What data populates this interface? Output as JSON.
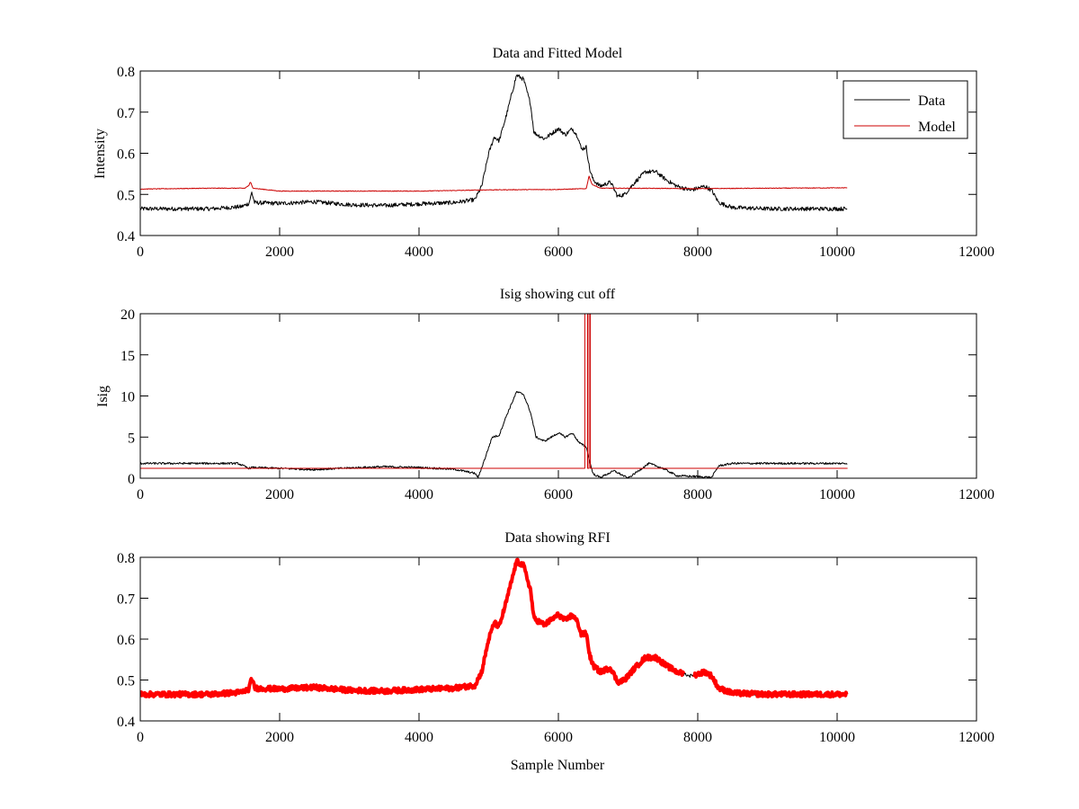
{
  "chart_data": [
    {
      "type": "line",
      "title": "Data and Fitted Model",
      "xlabel": "",
      "ylabel": "Intensity",
      "xlim": [
        0,
        12000
      ],
      "ylim": [
        0.4,
        0.8
      ],
      "xticks": [
        0,
        2000,
        4000,
        6000,
        8000,
        10000,
        12000
      ],
      "yticks": [
        0.4,
        0.5,
        0.6,
        0.7,
        0.8
      ],
      "xtick_labels": [
        "0",
        "2000",
        "4000",
        "6000",
        "8000",
        "10000",
        "12000"
      ],
      "ytick_labels": [
        "0.4",
        "0.5",
        "0.6",
        "0.7",
        "0.8"
      ],
      "grid": false,
      "legend": {
        "position": "top-right"
      },
      "series": [
        {
          "name": "Data",
          "color": "#000000",
          "noise": 0.005,
          "points": [
            [
              0,
              0.465
            ],
            [
              1000,
              0.465
            ],
            [
              1450,
              0.47
            ],
            [
              1560,
              0.478
            ],
            [
              1600,
              0.505
            ],
            [
              1640,
              0.48
            ],
            [
              2000,
              0.478
            ],
            [
              2500,
              0.482
            ],
            [
              3000,
              0.475
            ],
            [
              3500,
              0.473
            ],
            [
              4000,
              0.477
            ],
            [
              4500,
              0.48
            ],
            [
              4800,
              0.487
            ],
            [
              4900,
              0.52
            ],
            [
              5000,
              0.6
            ],
            [
              5080,
              0.64
            ],
            [
              5150,
              0.63
            ],
            [
              5250,
              0.69
            ],
            [
              5400,
              0.79
            ],
            [
              5500,
              0.78
            ],
            [
              5600,
              0.72
            ],
            [
              5650,
              0.65
            ],
            [
              5800,
              0.635
            ],
            [
              6000,
              0.66
            ],
            [
              6100,
              0.645
            ],
            [
              6200,
              0.66
            ],
            [
              6280,
              0.64
            ],
            [
              6330,
              0.61
            ],
            [
              6400,
              0.615
            ],
            [
              6450,
              0.56
            ],
            [
              6500,
              0.535
            ],
            [
              6600,
              0.52
            ],
            [
              6750,
              0.53
            ],
            [
              6850,
              0.495
            ],
            [
              6950,
              0.5
            ],
            [
              7100,
              0.53
            ],
            [
              7250,
              0.555
            ],
            [
              7400,
              0.555
            ],
            [
              7550,
              0.535
            ],
            [
              7700,
              0.52
            ],
            [
              7900,
              0.51
            ],
            [
              8100,
              0.52
            ],
            [
              8200,
              0.51
            ],
            [
              8300,
              0.48
            ],
            [
              8500,
              0.468
            ],
            [
              9000,
              0.465
            ],
            [
              10150,
              0.465
            ]
          ]
        },
        {
          "name": "Model",
          "color": "#cc0000",
          "noise": 0.0008,
          "points": [
            [
              0,
              0.513
            ],
            [
              1000,
              0.515
            ],
            [
              1500,
              0.515
            ],
            [
              1560,
              0.522
            ],
            [
              1580,
              0.53
            ],
            [
              1620,
              0.515
            ],
            [
              2000,
              0.508
            ],
            [
              3000,
              0.508
            ],
            [
              4000,
              0.508
            ],
            [
              4700,
              0.51
            ],
            [
              5000,
              0.511
            ],
            [
              6000,
              0.512
            ],
            [
              6400,
              0.514
            ],
            [
              6440,
              0.545
            ],
            [
              6480,
              0.525
            ],
            [
              6600,
              0.515
            ],
            [
              7000,
              0.515
            ],
            [
              8000,
              0.514
            ],
            [
              9000,
              0.515
            ],
            [
              10150,
              0.516
            ]
          ]
        }
      ]
    },
    {
      "type": "line",
      "title": "Isig showing cut off",
      "xlabel": "",
      "ylabel": "Isig",
      "xlim": [
        0,
        12000
      ],
      "ylim": [
        0,
        20
      ],
      "xticks": [
        0,
        2000,
        4000,
        6000,
        8000,
        10000,
        12000
      ],
      "yticks": [
        0,
        5,
        10,
        15,
        20
      ],
      "xtick_labels": [
        "0",
        "2000",
        "4000",
        "6000",
        "8000",
        "10000",
        "12000"
      ],
      "ytick_labels": [
        "0",
        "5",
        "10",
        "15",
        "20"
      ],
      "grid": false,
      "series": [
        {
          "color": "#000000",
          "noise": 0.12,
          "points": [
            [
              0,
              1.8
            ],
            [
              1400,
              1.8
            ],
            [
              1560,
              1.2
            ],
            [
              1600,
              1.3
            ],
            [
              2000,
              1.2
            ],
            [
              2500,
              1.05
            ],
            [
              3000,
              1.25
            ],
            [
              3500,
              1.4
            ],
            [
              4000,
              1.3
            ],
            [
              4500,
              1.1
            ],
            [
              4800,
              0.6
            ],
            [
              4850,
              0.1
            ],
            [
              4950,
              2.5
            ],
            [
              5050,
              5.0
            ],
            [
              5150,
              5.2
            ],
            [
              5250,
              7.5
            ],
            [
              5400,
              10.5
            ],
            [
              5500,
              10.2
            ],
            [
              5600,
              8.0
            ],
            [
              5680,
              5.0
            ],
            [
              5800,
              4.5
            ],
            [
              6000,
              5.5
            ],
            [
              6100,
              5.0
            ],
            [
              6200,
              5.5
            ],
            [
              6300,
              4.3
            ],
            [
              6400,
              3.8
            ],
            [
              6450,
              2.0
            ],
            [
              6500,
              0.5
            ],
            [
              6600,
              0.1
            ],
            [
              6800,
              0.9
            ],
            [
              7000,
              0.0
            ],
            [
              7100,
              0.6
            ],
            [
              7300,
              1.8
            ],
            [
              7500,
              1.2
            ],
            [
              7700,
              0.3
            ],
            [
              8000,
              0.2
            ],
            [
              8200,
              0.1
            ],
            [
              8300,
              1.5
            ],
            [
              8500,
              1.8
            ],
            [
              9000,
              1.8
            ],
            [
              10150,
              1.8
            ]
          ]
        },
        {
          "color": "#cc0000",
          "noise": 0,
          "points": [
            [
              0,
              1.2
            ],
            [
              6380,
              1.2
            ],
            [
              6380,
              20
            ],
            [
              6420,
              20
            ],
            [
              6420,
              1.2
            ],
            [
              6440,
              1.2
            ],
            [
              6440,
              20
            ],
            [
              6460,
              20
            ],
            [
              6460,
              1.2
            ],
            [
              10150,
              1.2
            ]
          ]
        }
      ]
    },
    {
      "type": "line",
      "title": "Data showing RFI",
      "xlabel": "Sample Number",
      "ylabel": "",
      "xlim": [
        0,
        12000
      ],
      "ylim": [
        0.4,
        0.8
      ],
      "xticks": [
        0,
        2000,
        4000,
        6000,
        8000,
        10000,
        12000
      ],
      "yticks": [
        0.4,
        0.5,
        0.6,
        0.7,
        0.8
      ],
      "xtick_labels": [
        "0",
        "2000",
        "4000",
        "6000",
        "8000",
        "10000",
        "12000"
      ],
      "ytick_labels": [
        "0.4",
        "0.5",
        "0.6",
        "0.7",
        "0.8"
      ],
      "grid": false,
      "series": [
        {
          "color": "#000000",
          "noise": 0.004,
          "points": [
            [
              0,
              0.465
            ],
            [
              1000,
              0.465
            ],
            [
              1450,
              0.47
            ],
            [
              1560,
              0.478
            ],
            [
              1600,
              0.505
            ],
            [
              1640,
              0.48
            ],
            [
              2000,
              0.478
            ],
            [
              2500,
              0.482
            ],
            [
              3000,
              0.475
            ],
            [
              3500,
              0.473
            ],
            [
              4000,
              0.477
            ],
            [
              4500,
              0.48
            ],
            [
              4800,
              0.487
            ],
            [
              4900,
              0.52
            ],
            [
              5000,
              0.6
            ],
            [
              5080,
              0.64
            ],
            [
              5150,
              0.63
            ],
            [
              5250,
              0.69
            ],
            [
              5400,
              0.79
            ],
            [
              5500,
              0.78
            ],
            [
              5600,
              0.72
            ],
            [
              5650,
              0.65
            ],
            [
              5800,
              0.635
            ],
            [
              6000,
              0.66
            ],
            [
              6100,
              0.645
            ],
            [
              6200,
              0.66
            ],
            [
              6280,
              0.64
            ],
            [
              6330,
              0.61
            ],
            [
              6400,
              0.615
            ],
            [
              6450,
              0.56
            ],
            [
              6500,
              0.535
            ],
            [
              6600,
              0.52
            ],
            [
              6750,
              0.53
            ],
            [
              6850,
              0.495
            ],
            [
              6950,
              0.5
            ],
            [
              7100,
              0.53
            ],
            [
              7250,
              0.555
            ],
            [
              7400,
              0.555
            ],
            [
              7550,
              0.535
            ],
            [
              7700,
              0.52
            ],
            [
              7900,
              0.51
            ],
            [
              8100,
              0.52
            ],
            [
              8200,
              0.51
            ],
            [
              8300,
              0.48
            ],
            [
              8500,
              0.468
            ],
            [
              9000,
              0.465
            ],
            [
              10150,
              0.465
            ]
          ]
        },
        {
          "color": "#ff0000",
          "noise": 0.006,
          "thick": true,
          "points": [
            [
              0,
              0.465
            ],
            [
              1000,
              0.465
            ],
            [
              1450,
              0.47
            ],
            [
              1560,
              0.478
            ],
            [
              1600,
              0.505
            ],
            [
              1640,
              0.48
            ],
            [
              2000,
              0.478
            ],
            [
              2500,
              0.482
            ],
            [
              3000,
              0.475
            ],
            [
              3500,
              0.473
            ],
            [
              4000,
              0.477
            ],
            [
              4500,
              0.48
            ],
            [
              4800,
              0.487
            ],
            [
              4900,
              0.52
            ],
            [
              5000,
              0.6
            ],
            [
              5080,
              0.64
            ],
            [
              5150,
              0.63
            ],
            [
              5250,
              0.69
            ],
            [
              5400,
              0.79
            ],
            [
              5500,
              0.78
            ],
            [
              5600,
              0.72
            ],
            [
              5650,
              0.65
            ],
            [
              5800,
              0.635
            ],
            [
              6000,
              0.66
            ],
            [
              6100,
              0.645
            ],
            [
              6200,
              0.66
            ],
            [
              6280,
              0.64
            ],
            [
              6330,
              0.61
            ],
            [
              6400,
              0.615
            ],
            [
              6450,
              0.56
            ],
            [
              6500,
              0.535
            ],
            [
              6600,
              0.52
            ],
            [
              6750,
              0.53
            ],
            [
              6850,
              0.495
            ],
            [
              6950,
              0.5
            ],
            [
              7100,
              0.53
            ],
            [
              7250,
              0.555
            ],
            [
              7400,
              0.555
            ],
            [
              7550,
              0.535
            ],
            [
              7700,
              0.52
            ],
            [
              7800,
              0.515
            ],
            [
              7850,
              0.515
            ],
            [
              7950,
              0.512
            ],
            [
              8100,
              0.52
            ],
            [
              8200,
              0.51
            ],
            [
              8300,
              0.48
            ],
            [
              8500,
              0.468
            ],
            [
              9000,
              0.465
            ],
            [
              10150,
              0.465
            ]
          ],
          "gaps": [
            [
              7800,
              7950
            ]
          ]
        }
      ]
    }
  ]
}
